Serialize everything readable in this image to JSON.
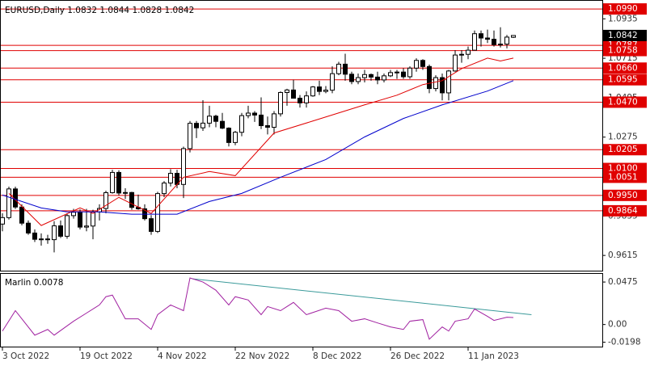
{
  "chart_data": {
    "type": "candlestick",
    "title": "EURUSD,Daily  1.0832 1.0844 1.0828 1.0842",
    "categories": [
      "3 Oct 2022",
      null,
      null,
      null,
      null,
      null,
      null,
      null,
      null,
      null,
      null,
      null,
      "19 Oct 2022",
      null,
      null,
      null,
      null,
      null,
      null,
      null,
      null,
      null,
      null,
      null,
      "4 Nov 2022",
      null,
      null,
      null,
      null,
      null,
      null,
      null,
      null,
      null,
      null,
      null,
      "22 Nov 2022",
      null,
      null,
      null,
      null,
      null,
      null,
      null,
      null,
      null,
      null,
      null,
      "8 Dec 2022",
      null,
      null,
      null,
      null,
      null,
      null,
      null,
      null,
      null,
      null,
      null,
      "26 Dec 2022",
      null,
      null,
      null,
      null,
      null,
      null,
      null,
      null,
      null,
      null,
      null,
      "11 Jan 2023",
      null,
      null,
      null,
      null,
      null,
      null,
      null
    ],
    "open": [
      0.979,
      0.9826,
      0.9986,
      0.9885,
      0.9795,
      0.974,
      0.9705,
      0.9707,
      0.9703,
      0.978,
      0.9722,
      0.9837,
      0.9856,
      0.9773,
      0.9779,
      0.9858,
      0.9877,
      0.9965,
      1.0078,
      0.9963,
      0.9966,
      0.9883,
      0.9875,
      0.982,
      0.9749,
      0.996,
      1.0019,
      1.0073,
      1.0011,
      1.0211,
      1.0352,
      1.0327,
      1.0353,
      1.0392,
      1.0363,
      1.0325,
      1.0245,
      1.0302,
      1.0395,
      1.0409,
      1.0398,
      1.0339,
      1.033,
      1.0405,
      1.0524,
      1.0538,
      1.0492,
      1.0466,
      1.0505,
      1.0555,
      1.053,
      1.0537,
      1.0629,
      1.0682,
      1.0626,
      1.0585,
      1.0607,
      1.0624,
      1.061,
      1.0594,
      1.0617,
      1.0635,
      1.0638,
      1.0612,
      1.066,
      1.0703,
      1.0669,
      1.0546,
      1.0607,
      1.0522,
      1.0644,
      1.0733,
      1.0737,
      1.076,
      1.0852,
      1.0828,
      1.0821,
      1.0791,
      1.0794,
      1.0832
    ],
    "high": [
      0.985,
      0.9999,
      0.9999,
      0.99,
      0.981,
      0.976,
      0.9738,
      0.973,
      0.9806,
      0.981,
      0.985,
      0.9875,
      0.9872,
      0.9875,
      0.987,
      0.99,
      0.9976,
      1.0093,
      1.009,
      0.999,
      0.997,
      0.9954,
      0.99,
      0.984,
      0.997,
      1.003,
      1.0096,
      1.0093,
      1.0222,
      1.0365,
      1.0365,
      1.0481,
      1.045,
      1.04,
      1.041,
      1.033,
      1.031,
      1.041,
      1.045,
      1.042,
      1.0497,
      1.039,
      1.042,
      1.053,
      1.0545,
      1.0595,
      1.051,
      1.053,
      1.056,
      1.059,
      1.056,
      1.067,
      1.0695,
      1.074,
      1.064,
      1.063,
      1.065,
      1.063,
      1.064,
      1.063,
      1.065,
      1.065,
      1.066,
      1.067,
      1.0715,
      1.071,
      1.068,
      1.062,
      1.063,
      1.065,
      1.076,
      1.076,
      1.078,
      1.087,
      1.087,
      1.0875,
      1.087,
      1.0888,
      1.0845,
      1.0844
    ],
    "low": [
      0.975,
      0.9815,
      0.9874,
      0.9783,
      0.973,
      0.969,
      0.967,
      0.968,
      0.9632,
      0.9712,
      0.9708,
      0.982,
      0.976,
      0.975,
      0.9705,
      0.981,
      0.985,
      0.996,
      0.995,
      0.993,
      0.987,
      0.987,
      0.981,
      0.973,
      0.974,
      0.994,
      1.0,
      0.999,
      0.9935,
      1.019,
      1.027,
      1.031,
      1.033,
      1.033,
      1.032,
      1.0223,
      1.023,
      1.028,
      1.038,
      1.036,
      1.032,
      1.029,
      1.029,
      1.039,
      1.045,
      1.049,
      1.044,
      1.044,
      1.05,
      1.051,
      1.052,
      1.052,
      1.062,
      1.059,
      1.057,
      1.057,
      1.058,
      1.059,
      1.057,
      1.058,
      1.061,
      1.06,
      1.06,
      1.06,
      1.064,
      1.065,
      1.052,
      1.053,
      1.048,
      1.048,
      1.064,
      1.069,
      1.071,
      1.076,
      1.078,
      1.08,
      1.078,
      1.0775,
      1.077,
      1.0828
    ],
    "close": [
      0.9826,
      0.9986,
      0.9885,
      0.9795,
      0.974,
      0.9705,
      0.9707,
      0.9703,
      0.978,
      0.9722,
      0.9837,
      0.9856,
      0.9773,
      0.9779,
      0.9858,
      0.9877,
      0.9965,
      1.0078,
      0.9963,
      0.9966,
      0.9883,
      0.9875,
      0.982,
      0.9749,
      0.996,
      1.0019,
      1.0073,
      1.0011,
      1.0211,
      1.0352,
      1.0327,
      1.0353,
      1.0392,
      1.0363,
      1.0325,
      1.0245,
      1.0302,
      1.0395,
      1.0409,
      1.0398,
      1.0339,
      1.033,
      1.0405,
      1.0524,
      1.0538,
      1.0492,
      1.0466,
      1.0505,
      1.0555,
      1.053,
      1.0537,
      1.0629,
      1.0682,
      1.0626,
      1.0585,
      1.0607,
      1.0624,
      1.061,
      1.0594,
      1.0617,
      1.0635,
      1.0638,
      1.0612,
      1.066,
      1.0703,
      1.0669,
      1.0546,
      1.0607,
      1.0522,
      1.0644,
      1.0733,
      1.0737,
      1.076,
      1.0852,
      1.0828,
      1.0821,
      1.0791,
      1.0794,
      1.0833,
      1.0842
    ],
    "ylim": [
      0.953,
      1.104
    ],
    "yticks": [
      1.0935,
      1.0715,
      1.0495,
      1.0275,
      0.9835,
      0.9615
    ],
    "levels": [
      {
        "value": 1.099,
        "label": "1.0990"
      },
      {
        "value": 1.0787,
        "label": "1.0787"
      },
      {
        "value": 1.0758,
        "label": "1.0758"
      },
      {
        "value": 1.066,
        "label": "1.0660"
      },
      {
        "value": 1.0595,
        "label": "1.0595"
      },
      {
        "value": 1.047,
        "label": "1.0470"
      },
      {
        "value": 1.0205,
        "label": "1.0205"
      },
      {
        "value": 1.01,
        "label": "1.0100"
      },
      {
        "value": 1.0051,
        "label": "1.0051"
      },
      {
        "value": 0.995,
        "label": "0.9950"
      },
      {
        "value": 0.9864,
        "label": "0.9864"
      }
    ],
    "level_color": "#e00000",
    "current_price": 1.0842,
    "overlays": [
      {
        "color": "#e00000",
        "x": [
          1,
          6,
          12,
          14,
          18,
          23,
          28,
          32,
          36,
          42,
          48,
          52,
          56,
          61,
          65,
          68,
          71,
          75,
          77,
          79
        ],
        "values": [
          0.9961,
          0.9782,
          0.988,
          0.9849,
          0.9939,
          0.9849,
          1.0051,
          1.0083,
          1.006,
          1.0298,
          1.0365,
          1.041,
          1.0455,
          1.0509,
          1.0568,
          1.059,
          1.0657,
          1.0716,
          1.07,
          1.0716
        ]
      },
      {
        "color": "#0000cc",
        "x": [
          0,
          6,
          10,
          15,
          20,
          27,
          32,
          37,
          43,
          50,
          56,
          62,
          68,
          75,
          79
        ],
        "values": [
          0.9952,
          0.988,
          0.9858,
          0.9858,
          0.9845,
          0.9845,
          0.9916,
          0.9961,
          1.0051,
          1.015,
          1.0276,
          1.0379,
          1.0455,
          1.0532,
          1.059
        ]
      }
    ],
    "indicator": {
      "title": "Marlin 0.0078",
      "color": "#a020a0",
      "ylim": [
        -0.0256,
        0.0566
      ],
      "yticks": [
        0.0475,
        {
          "value": 0,
          "label": "0.00"
        },
        -0.0198
      ],
      "x": [
        0,
        2,
        5,
        7,
        8,
        11,
        13,
        15,
        16,
        17,
        19,
        21,
        23,
        24,
        26,
        28,
        29,
        31,
        33,
        35,
        36,
        38,
        40,
        41,
        43,
        45,
        47,
        50,
        52,
        54,
        56,
        58,
        60,
        62,
        63,
        65,
        66,
        68,
        69,
        70,
        72,
        73,
        75,
        76,
        78,
        79
      ],
      "values": [
        -0.0073,
        0.0155,
        -0.0119,
        -0.0055,
        -0.0119,
        0.0037,
        0.0128,
        0.0219,
        0.0311,
        0.0329,
        0.0064,
        0.0064,
        -0.0055,
        0.011,
        0.0219,
        0.0155,
        0.0521,
        0.0475,
        0.0384,
        0.0219,
        0.0311,
        0.0274,
        0.011,
        0.0201,
        0.0155,
        0.0247,
        0.011,
        0.0183,
        0.0155,
        0.0037,
        0.0064,
        0.0018,
        -0.0027,
        -0.0055,
        0.0037,
        0.0055,
        -0.0164,
        -0.0027,
        -0.0073,
        0.0037,
        0.0064,
        0.0174,
        0.0091,
        0.0046,
        0.0082,
        0.0078
      ],
      "trendline": {
        "color": "#3a9a9a",
        "x": [
          29.4,
          81.8
        ],
        "values": [
          0.0511,
          0.011
        ]
      }
    }
  }
}
